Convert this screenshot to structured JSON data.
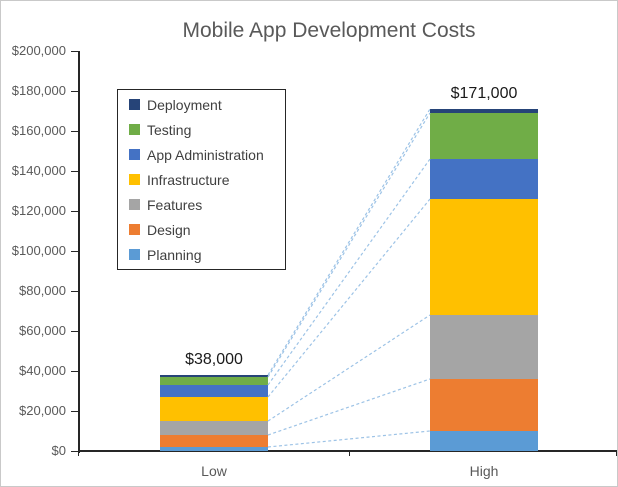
{
  "colors": {
    "axis_line": "#262626",
    "axis_text": "#595959",
    "title_text": "#595959",
    "data_label_text": "#1a1a1a",
    "legend_text": "#404040",
    "legend_border": "#262626",
    "connector_line": "#9dc3e6",
    "chart_border": "#c9c9c9",
    "background": "#ffffff"
  },
  "chart_data": {
    "type": "bar",
    "variant": "stacked-column",
    "title": "Mobile App Development Costs",
    "categories": [
      "Low",
      "High"
    ],
    "series": [
      {
        "name": "Planning",
        "color": "#5b9bd5",
        "values": [
          2000,
          10000
        ]
      },
      {
        "name": "Design",
        "color": "#ed7d31",
        "values": [
          6000,
          26000
        ]
      },
      {
        "name": "Features",
        "color": "#a5a5a5",
        "values": [
          7000,
          32000
        ]
      },
      {
        "name": "Infrastructure",
        "color": "#ffc000",
        "values": [
          12000,
          58000
        ]
      },
      {
        "name": "App Administration",
        "color": "#4472c4",
        "values": [
          6000,
          20000
        ]
      },
      {
        "name": "Testing",
        "color": "#70ad47",
        "values": [
          4000,
          23000
        ]
      },
      {
        "name": "Deployment",
        "color": "#264478",
        "values": [
          1000,
          2000
        ]
      }
    ],
    "totals": [
      38000,
      171000
    ],
    "total_labels": [
      "$38,000",
      "$171,000"
    ],
    "xlabel": "",
    "ylabel": "",
    "ylim": [
      0,
      200000
    ],
    "y_tick_step": 20000,
    "y_tick_labels_top_to_bottom": [
      "$200,000",
      "$180,000",
      "$160,000",
      "$140,000",
      "$120,000",
      "$100,000",
      "$80,000",
      "$60,000",
      "$40,000",
      "$20,000",
      "$0"
    ],
    "grid": false,
    "series_connector_lines": true,
    "legend": {
      "position": "inside-top-left",
      "items_top_to_bottom": [
        {
          "label": "Deployment",
          "color": "#264478"
        },
        {
          "label": "Testing",
          "color": "#70ad47"
        },
        {
          "label": "App Administration",
          "color": "#4472c4"
        },
        {
          "label": "Infrastructure",
          "color": "#ffc000"
        },
        {
          "label": "Features",
          "color": "#a5a5a5"
        },
        {
          "label": "Design",
          "color": "#ed7d31"
        },
        {
          "label": "Planning",
          "color": "#5b9bd5"
        }
      ]
    }
  }
}
